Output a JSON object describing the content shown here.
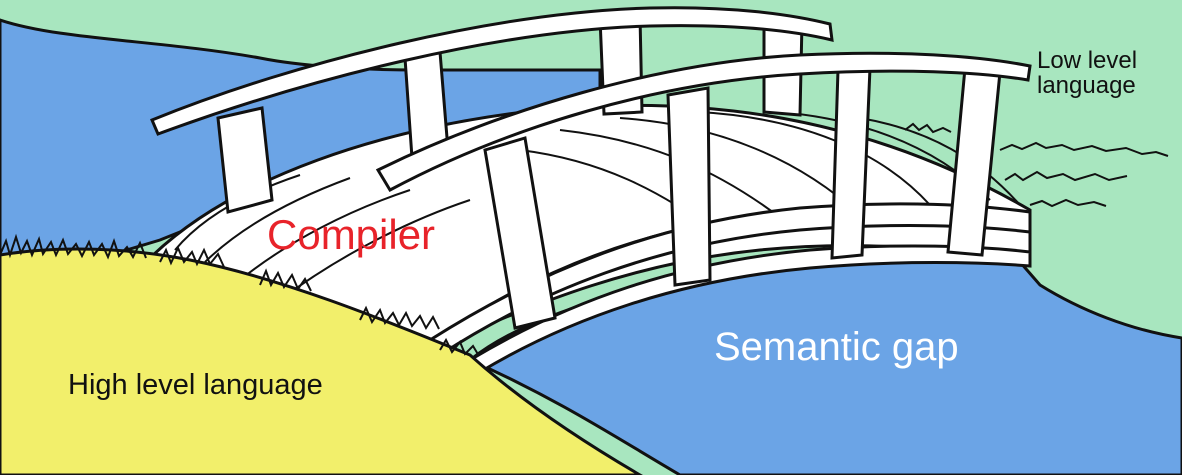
{
  "labels": {
    "high_level": "High level language",
    "low_level": "Low level language",
    "compiler": "Compiler",
    "semantic_gap": "Semantic gap"
  },
  "colors": {
    "sky_green": "#a8e6bf",
    "water_blue": "#6ba4e6",
    "bank_yellow": "#f2ef6b",
    "compiler_red": "#e8232a",
    "outline": "#111111",
    "bridge": "#ffffff"
  }
}
